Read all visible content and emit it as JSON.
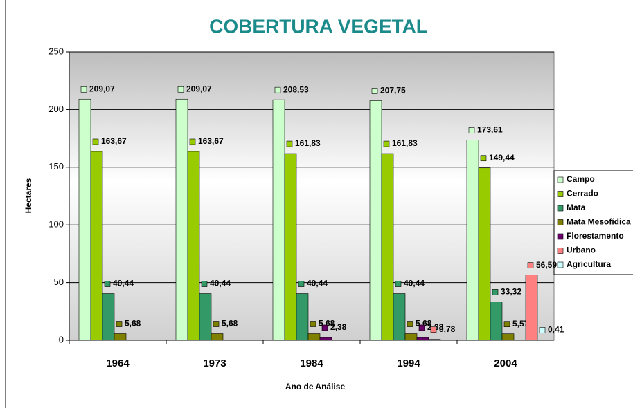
{
  "chart_data": {
    "type": "bar",
    "title": "COBERTURA VEGETAL",
    "x_label": "Ano de Análise",
    "y_label": "Hectares",
    "categories": [
      "1964",
      "1973",
      "1984",
      "1994",
      "2004"
    ],
    "ylim": [
      0,
      250
    ],
    "yticks": [
      0,
      50,
      100,
      150,
      200,
      250
    ],
    "grid": true,
    "legend": "right",
    "series": [
      {
        "name": "Campo",
        "color": "#ccffcc",
        "values": [
          209.07,
          209.07,
          208.53,
          207.75,
          173.61
        ],
        "value_labels": [
          "209,07",
          "209,07",
          "208,53",
          "207,75",
          "173,61"
        ]
      },
      {
        "name": "Cerrado",
        "color": "#99cc00",
        "values": [
          163.67,
          163.67,
          161.83,
          161.83,
          149.44
        ],
        "value_labels": [
          "163,67",
          "163,67",
          "161,83",
          "161,83",
          "149,44"
        ]
      },
      {
        "name": "Mata",
        "color": "#339966",
        "values": [
          40.44,
          40.44,
          40.44,
          40.44,
          33.32
        ],
        "value_labels": [
          "40,44",
          "40,44",
          "40,44",
          "40,44",
          "33,32"
        ]
      },
      {
        "name": "Mata Mesofídica",
        "color": "#808000",
        "values": [
          5.68,
          5.68,
          5.68,
          5.68,
          5.57
        ],
        "value_labels": [
          "5,68",
          "5,68",
          "5,68",
          "5,68",
          "5,57"
        ]
      },
      {
        "name": "Florestamento",
        "color": "#660066",
        "values": [
          null,
          null,
          2.38,
          2.38,
          null
        ],
        "value_labels": [
          null,
          null,
          "2,38",
          "2,38",
          null
        ]
      },
      {
        "name": "Urbano",
        "color": "#ff8080",
        "values": [
          null,
          null,
          null,
          0.78,
          56.59
        ],
        "value_labels": [
          null,
          null,
          null,
          "0,78",
          "56,59"
        ]
      },
      {
        "name": "Agricultura",
        "color": "#ccffff",
        "values": [
          null,
          null,
          null,
          null,
          0.41
        ],
        "value_labels": [
          null,
          null,
          null,
          null,
          "0,41"
        ]
      }
    ]
  }
}
